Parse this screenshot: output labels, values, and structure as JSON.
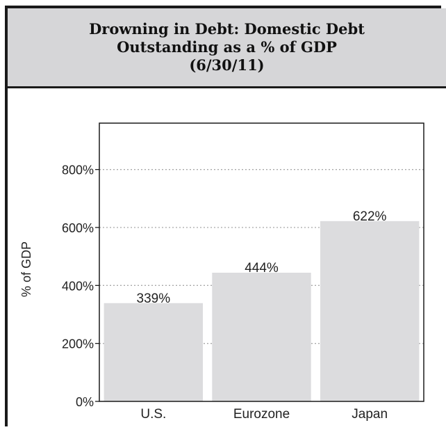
{
  "chart_data": {
    "type": "bar",
    "title": "Drowning in Debt: Domestic Debt\nOutstanding as a % of GDP\n(6/30/11)",
    "ylabel": "% of GDP",
    "xlabel": "",
    "categories": [
      "U.S.",
      "Eurozone",
      "Japan"
    ],
    "values": [
      339,
      444,
      622
    ],
    "data_labels": [
      "339%",
      "444%",
      "622%"
    ],
    "ylim": [
      0,
      960
    ],
    "yticks": [
      0,
      200,
      400,
      600,
      800
    ],
    "ytick_labels": [
      "0%",
      "200%",
      "400%",
      "600%",
      "800%"
    ],
    "grid": true,
    "colors": {
      "bar": "#dcdcde",
      "grid": "#a8a8a8",
      "axis": "#1a1a1a",
      "title_bg": "#d6d6d8"
    }
  }
}
